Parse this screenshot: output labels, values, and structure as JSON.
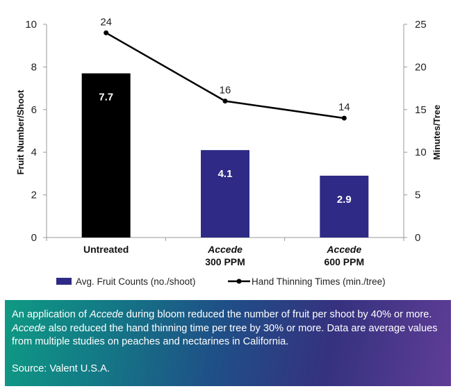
{
  "chart_data": {
    "type": "bar+line",
    "categories": [
      {
        "name": "Untreated",
        "line1": "Untreated",
        "line2": ""
      },
      {
        "name": "Accede 300 PPM",
        "line1": "Accede",
        "line2": "300 PPM"
      },
      {
        "name": "Accede 600 PPM",
        "line1": "Accede",
        "line2": "600 PPM"
      }
    ],
    "bar_series": {
      "name": "Avg. Fruit Counts (no./shoot)",
      "values": [
        7.7,
        4.1,
        2.9
      ],
      "labels": [
        "7.7",
        "4.1",
        "2.9"
      ],
      "colors": [
        "#000000",
        "#2e2a85",
        "#2e2a85"
      ],
      "legend_color": "#2e2a85"
    },
    "line_series": {
      "name": "Hand Thinning Times (min./tree)",
      "values": [
        24,
        16,
        14
      ],
      "labels": [
        "24",
        "16",
        "14"
      ],
      "color": "#000000"
    },
    "y_left": {
      "label": "Fruit Number/Shoot",
      "min": 0,
      "max": 10,
      "ticks": [
        "0",
        "2",
        "4",
        "6",
        "8",
        "10"
      ]
    },
    "y_right": {
      "label": "Minutes/Tree",
      "min": 0,
      "max": 25,
      "ticks": [
        "0",
        "5",
        "10",
        "15",
        "20",
        "25"
      ]
    },
    "legend_position": "bottom"
  },
  "caption": {
    "seg1": "An application of ",
    "em1": "Accede",
    "seg2": " during bloom reduced the number of fruit per shoot by 40% or more. ",
    "em2": "Accede",
    "seg3": " also reduced the hand thinning time per tree by 30% or more. Data are average values from multiple studies on peaches and nectarines in California.",
    "source": "Source: Valent U.S.A."
  }
}
